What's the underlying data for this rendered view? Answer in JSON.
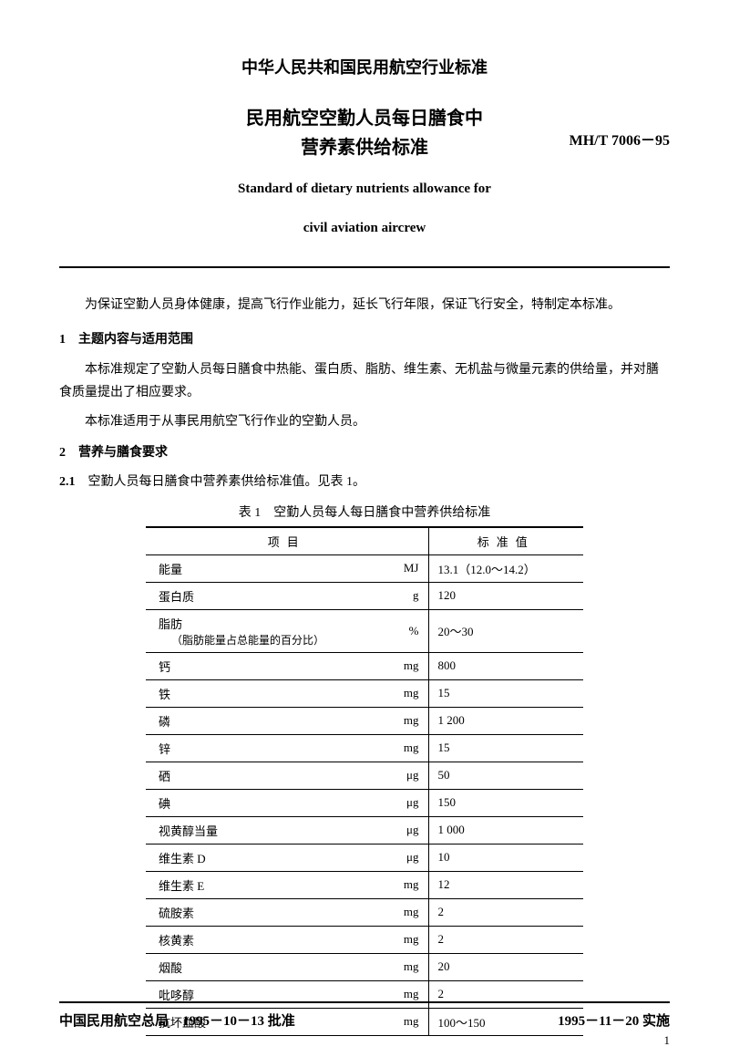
{
  "header": "中华人民共和国民用航空行业标准",
  "title_cn_line1": "民用航空空勤人员每日膳食中",
  "title_cn_line2": "营养素供给标准",
  "standard_code": "MH/T 7006－95",
  "title_en_line1": "Standard of dietary nutrients allowance for",
  "title_en_line2": "civil aviation aircrew",
  "intro": "为保证空勤人员身体健康，提高飞行作业能力，延长飞行年限，保证飞行安全，特制定本标准。",
  "section1": {
    "num": "1",
    "title": "主题内容与适用范围",
    "p1": "本标准规定了空勤人员每日膳食中热能、蛋白质、脂肪、维生素、无机盐与微量元素的供给量，并对膳食质量提出了相应要求。",
    "p2": "本标准适用于从事民用航空飞行作业的空勤人员。"
  },
  "section2": {
    "num": "2",
    "title": "营养与膳食要求",
    "sub1_num": "2.1",
    "sub1_text": "空勤人员每日膳食中营养素供给标准值。见表 1。"
  },
  "table": {
    "caption": "表 1　空勤人员每人每日膳食中营养供给标准",
    "col_item": "项目",
    "col_value": "标准值",
    "rows": [
      {
        "name": "能量",
        "sub": "",
        "unit": "MJ",
        "value": "13.1（12.0～14.2）"
      },
      {
        "name": "蛋白质",
        "sub": "",
        "unit": "g",
        "value": "120"
      },
      {
        "name": "脂肪",
        "sub": "（脂肪能量占总能量的百分比）",
        "unit": "%",
        "value": "20～30"
      },
      {
        "name": "钙",
        "sub": "",
        "unit": "mg",
        "value": "800"
      },
      {
        "name": "铁",
        "sub": "",
        "unit": "mg",
        "value": "15"
      },
      {
        "name": "磷",
        "sub": "",
        "unit": "mg",
        "value": "1 200"
      },
      {
        "name": "锌",
        "sub": "",
        "unit": "mg",
        "value": "15"
      },
      {
        "name": "硒",
        "sub": "",
        "unit": "μg",
        "value": "50"
      },
      {
        "name": "碘",
        "sub": "",
        "unit": "μg",
        "value": "150"
      },
      {
        "name": "视黄醇当量",
        "sub": "",
        "unit": "μg",
        "value": "1 000"
      },
      {
        "name": "维生素 D",
        "sub": "",
        "unit": "μg",
        "value": "10"
      },
      {
        "name": "维生素 E",
        "sub": "",
        "unit": "mg",
        "value": "12"
      },
      {
        "name": "硫胺素",
        "sub": "",
        "unit": "mg",
        "value": "2"
      },
      {
        "name": "核黄素",
        "sub": "",
        "unit": "mg",
        "value": "2"
      },
      {
        "name": "烟酸",
        "sub": "",
        "unit": "mg",
        "value": "20"
      },
      {
        "name": "吡哆醇",
        "sub": "",
        "unit": "mg",
        "value": "2"
      },
      {
        "name": "抗坏血酸",
        "sub": "",
        "unit": "mg",
        "value": "100～150"
      }
    ]
  },
  "footer": {
    "approval": "中国民用航空总局　1995－10－13 批准",
    "implementation": "1995－11－20 实施"
  },
  "page_number": "1"
}
